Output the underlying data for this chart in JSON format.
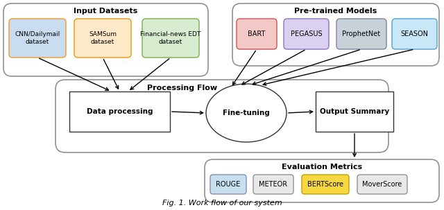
{
  "title": "Fig. 1. Work flow of our system",
  "bg_color": "#ffffff",
  "input_datasets": {
    "group_label": "Input Datasets",
    "boxes": [
      {
        "label": "CNN/Dailymail\ndataset",
        "color": "#c9dcf0",
        "edge_color": "#f0a040"
      },
      {
        "label": "SAMSum\ndataset",
        "color": "#fde8c8",
        "edge_color": "#e8a020"
      },
      {
        "label": "Financial-news EDT\ndataset",
        "color": "#d8ecd0",
        "edge_color": "#80b060"
      }
    ]
  },
  "pretrained_models": {
    "group_label": "Pre-trained Models",
    "boxes": [
      {
        "label": "BART",
        "color": "#f5c8c8",
        "edge_color": "#d06060"
      },
      {
        "label": "PEGASUS",
        "color": "#dcd0f0",
        "edge_color": "#9080c0"
      },
      {
        "label": "ProphetNet",
        "color": "#c8d0d8",
        "edge_color": "#8090a0"
      },
      {
        "label": "SEASON",
        "color": "#c8e8f8",
        "edge_color": "#60a8d0"
      }
    ]
  },
  "processing_flow": {
    "group_label": "Processing Flow",
    "data_processing": "Data processing",
    "fine_tuning": "Fine-tuning",
    "output_summary": "Output Summary"
  },
  "evaluation_metrics": {
    "group_label": "Evaluation Metrics",
    "boxes": [
      {
        "label": "ROUGE",
        "color": "#c8dff0",
        "edge_color": "#8090b0"
      },
      {
        "label": "METEOR",
        "color": "#e8e8e8",
        "edge_color": "#909090"
      },
      {
        "label": "BERTScore",
        "color": "#f8d840",
        "edge_color": "#c0a000"
      },
      {
        "label": "MoverScore",
        "color": "#e8e8e8",
        "edge_color": "#909090"
      }
    ]
  }
}
